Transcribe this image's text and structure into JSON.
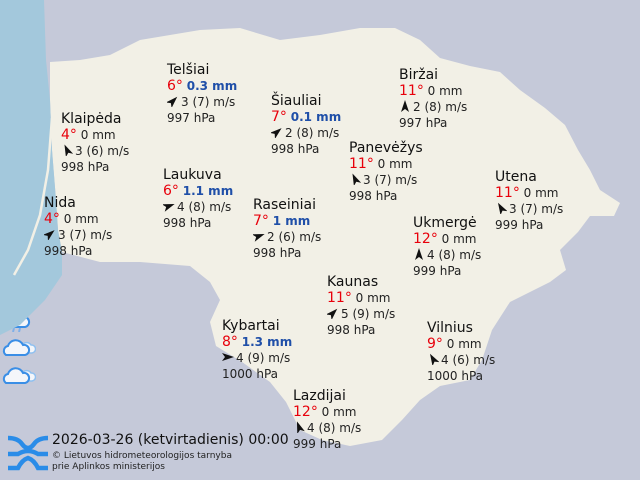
{
  "colors": {
    "land": "#f2f0e6",
    "sea": "#a3c8dc",
    "neighbors": "#c5c9d9",
    "temp": "#e8000b",
    "precip_wet": "#1f4fa8",
    "icon": "#3a8ee6"
  },
  "stations": [
    {
      "name": "Telšiai",
      "temp": "6°",
      "precip": "0.3 mm",
      "wet": true,
      "wind": "3 (7) m/s",
      "wind_dir_deg": 45,
      "pressure": "997 hPa",
      "icon": "rain-cloud-icon"
    },
    {
      "name": "Klaipėda",
      "temp": "4°",
      "precip": "0 mm",
      "wet": false,
      "wind": "3 (6) m/s",
      "wind_dir_deg": 335,
      "pressure": "998 hPa",
      "icon": "cloudy-icon"
    },
    {
      "name": "Šiauliai",
      "temp": "7°",
      "precip": "0.1 mm",
      "wet": true,
      "wind": "2 (8) m/s",
      "wind_dir_deg": 50,
      "pressure": "998 hPa",
      "icon": "rain-cloud-icon"
    },
    {
      "name": "Biržai",
      "temp": "11°",
      "precip": "0 mm",
      "wet": false,
      "wind": "2 (8) m/s",
      "wind_dir_deg": 0,
      "pressure": "997 hPa",
      "icon": "cloudy-icon"
    },
    {
      "name": "Panevėžys",
      "temp": "11°",
      "precip": "0 mm",
      "wet": false,
      "wind": "3 (7) m/s",
      "wind_dir_deg": 335,
      "pressure": "998 hPa",
      "icon": "cloudy-icon"
    },
    {
      "name": "Utena",
      "temp": "11°",
      "precip": "0 mm",
      "wet": false,
      "wind": "3 (7) m/s",
      "wind_dir_deg": 330,
      "pressure": "999 hPa",
      "icon": "cloudy-icon"
    },
    {
      "name": "Laukuva",
      "temp": "6°",
      "precip": "1.1 mm",
      "wet": true,
      "wind": "4 (8) m/s",
      "wind_dir_deg": 70,
      "pressure": "998 hPa",
      "icon": "rain-cloud-icon"
    },
    {
      "name": "Raseiniai",
      "temp": "7°",
      "precip": "1 mm",
      "wet": true,
      "wind": "2 (6) m/s",
      "wind_dir_deg": 70,
      "pressure": "998 hPa",
      "icon": "rain-cloud-icon"
    },
    {
      "name": "Nida",
      "temp": "4°",
      "precip": "0 mm",
      "wet": false,
      "wind": "3 (7) m/s",
      "wind_dir_deg": 50,
      "pressure": "998 hPa",
      "icon": "cloudy-icon"
    },
    {
      "name": "Ukmergė",
      "temp": "12°",
      "precip": "0 mm",
      "wet": false,
      "wind": "4 (8) m/s",
      "wind_dir_deg": 0,
      "pressure": "999 hPa",
      "icon": "cloudy-icon"
    },
    {
      "name": "Kaunas",
      "temp": "11°",
      "precip": "0 mm",
      "wet": false,
      "wind": "5 (9) m/s",
      "wind_dir_deg": 45,
      "pressure": "998 hPa",
      "icon": "cloudy-icon"
    },
    {
      "name": "Kybartai",
      "temp": "8°",
      "precip": "1.3 mm",
      "wet": true,
      "wind": "4 (9) m/s",
      "wind_dir_deg": 90,
      "pressure": "1000 hPa",
      "icon": "rain-cloud-icon"
    },
    {
      "name": "Vilnius",
      "temp": "9°",
      "precip": "0 mm",
      "wet": false,
      "wind": "4 (6) m/s",
      "wind_dir_deg": 330,
      "pressure": "1000 hPa",
      "icon": "cloudy-icon"
    },
    {
      "name": "Lazdijai",
      "temp": "12°",
      "precip": "0 mm",
      "wet": false,
      "wind": "4 (8) m/s",
      "wind_dir_deg": 340,
      "pressure": "999 hPa",
      "icon": "cloudy-icon"
    }
  ],
  "footer": {
    "datetime": "2026-03-26 (ketvirtadienis) 00:00",
    "credit_line1": "© Lietuvos hidrometeorologijos tarnyba",
    "credit_line2": "prie Aplinkos ministerijos",
    "logo": "lhmt-logo"
  }
}
